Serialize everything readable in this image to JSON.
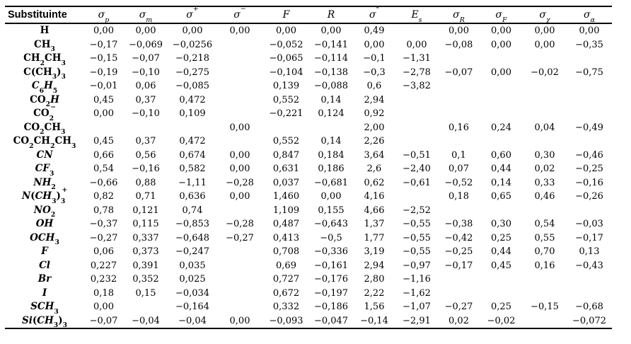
{
  "accent_colors": {
    "text": "#000000",
    "background": "#ffffff",
    "rule": "#000000"
  },
  "table": {
    "columns": [
      {
        "name": "col-substituinte",
        "html": "Substituinte"
      },
      {
        "name": "col-sigma-p",
        "html": "σ<sub>p</sub>"
      },
      {
        "name": "col-sigma-m",
        "html": "σ<sub>m</sub>"
      },
      {
        "name": "col-sigma-plus",
        "html": "σ<sup>+</sup>"
      },
      {
        "name": "col-sigma-minus",
        "html": "σ<sup>−</sup>"
      },
      {
        "name": "col-F",
        "html": "F"
      },
      {
        "name": "col-R",
        "html": "R"
      },
      {
        "name": "col-sigma-star",
        "html": "σ<sup>*</sup>"
      },
      {
        "name": "col-Es",
        "html": "E<sub>s</sub>"
      },
      {
        "name": "col-sigma-R",
        "html": "σ<sub>R</sub>"
      },
      {
        "name": "col-sigma-F",
        "html": "σ<sub>F</sub>"
      },
      {
        "name": "col-sigma-chi",
        "html": "σ<sub>χ</sub>"
      },
      {
        "name": "col-sigma-alpha",
        "html": "σ<sub>α</sub>"
      }
    ],
    "rows": [
      {
        "label_html": "H",
        "values": [
          "0,00",
          "0,00",
          "0,00",
          "0,00",
          "0,00",
          "0,00",
          "0,49",
          "",
          "0,00",
          "0,00",
          "0,00",
          "0,00"
        ]
      },
      {
        "label_html": "CH<sub>3</sub>",
        "values": [
          "−0,17",
          "−0,069",
          "−0,0256",
          "",
          "−0,052",
          "−0,141",
          "0,00",
          "0,00",
          "−0,08",
          "0,00",
          "0,00",
          "−0,35"
        ]
      },
      {
        "label_html": "CH<sub>2</sub>CH<sub>3</sub>",
        "values": [
          "−0,15",
          "−0,07",
          "−0,218",
          "",
          "−0,065",
          "−0,114",
          "−0,1",
          "−1,31",
          "",
          "",
          "",
          ""
        ]
      },
      {
        "label_html": "C(CH<sub>3</sub>)<sub>3</sub>",
        "values": [
          "−0,19",
          "−0,10",
          "−0,275",
          "",
          "−0,104",
          "−0,138",
          "−0,3",
          "−2,78",
          "−0,07",
          "0,00",
          "−0,02",
          "−0,75"
        ]
      },
      {
        "label_html": "<i>C</i><sub>6</sub><i>H</i><sub>5</sub>",
        "values": [
          "−0,01",
          "0,06",
          "−0,085",
          "",
          "0,139",
          "−0,088",
          "0,6",
          "−3,82",
          "",
          "",
          "",
          ""
        ]
      },
      {
        "label_html": "CO<sub>2</sub><i>H</i>",
        "values": [
          "0,45",
          "0,37",
          "0,472",
          "",
          "0,552",
          "0,14",
          "2,94",
          "",
          "",
          "",
          "",
          ""
        ]
      },
      {
        "label_html": "CO<sub>2</sub><sup class=\"ss\">−</sup>",
        "values": [
          "0,00",
          "−0,10",
          "0,109",
          "",
          "−0,221",
          "0,124",
          "0,92",
          "",
          "",
          "",
          "",
          ""
        ]
      },
      {
        "label_html": "CO<sub>2</sub>CH<sub>3</sub>",
        "values": [
          "",
          "",
          "",
          "0,00",
          "",
          "",
          "2,00",
          "",
          "0,16",
          "0,24",
          "0,04",
          "−0,49"
        ]
      },
      {
        "label_html": "CO<sub>2</sub>CH<sub>2</sub>CH<sub>3</sub>",
        "values": [
          "0,45",
          "0,37",
          "0,472",
          "",
          "0,552",
          "0,14",
          "2,26",
          "",
          "",
          "",
          "",
          ""
        ]
      },
      {
        "label_html": "<i>CN</i>",
        "values": [
          "0,66",
          "0,56",
          "0,674",
          "0,00",
          "0,847",
          "0,184",
          "3,64",
          "−0,51",
          "0,1",
          "0,60",
          "0,30",
          "−0,46"
        ]
      },
      {
        "label_html": "<i>CF</i><sub>3</sub>",
        "values": [
          "0,54",
          "−0,16",
          "0,582",
          "0,00",
          "0,631",
          "0,186",
          "2,6",
          "−2,40",
          "0,07",
          "0,44",
          "0,02",
          "−0,25"
        ]
      },
      {
        "label_html": "<i>NH</i><sub>2</sub>",
        "values": [
          "−0,66",
          "0,88",
          "−1,11",
          "−0,28",
          "0,037",
          "−0,681",
          "0,62",
          "−0,61",
          "−0,52",
          "0,14",
          "0,33",
          "−0,16"
        ]
      },
      {
        "label_html": "<i>N</i>(<i>CH</i><sub>3</sub>)<sub>3</sub><sup class=\"ss\">+</sup>",
        "values": [
          "0,82",
          "0,71",
          "0,636",
          "0,00",
          "1,460",
          "0,00",
          "4,16",
          "",
          "0,18",
          "0,65",
          "0,46",
          "−0,26"
        ]
      },
      {
        "label_html": "<i>NO</i><sub>2</sub>",
        "values": [
          "0,78",
          "0,121",
          "0,74",
          "",
          "1,109",
          "0,155",
          "4,66",
          "−2,52",
          "",
          "",
          "",
          ""
        ]
      },
      {
        "label_html": "<i>OH</i>",
        "values": [
          "−0,37",
          "0,115",
          "−0,853",
          "−0,28",
          "0,487",
          "−0,643",
          "1,37",
          "−0,55",
          "−0,38",
          "0,30",
          "0,54",
          "−0,03"
        ]
      },
      {
        "label_html": "<i>OCH</i><sub>3</sub>",
        "values": [
          "−0,27",
          "0,337",
          "−0,648",
          "−0,27",
          "0,413",
          "−0,5",
          "1,77",
          "−0,55",
          "−0,42",
          "0,25",
          "0,55",
          "−0,17"
        ]
      },
      {
        "label_html": "<i>F</i>",
        "values": [
          "0,06",
          "0,373",
          "−0,247",
          "",
          "0,708",
          "−0,336",
          "3,19",
          "−0,55",
          "−0,25",
          "0,44",
          "0,70",
          "0,13"
        ]
      },
      {
        "label_html": "<i>Cl</i>",
        "values": [
          "0,227",
          "0,391",
          "0,035",
          "",
          "0,69",
          "−0,161",
          "2,94",
          "−0,97",
          "−0,17",
          "0,45",
          "0,16",
          "−0,43"
        ]
      },
      {
        "label_html": "<i>Br</i>",
        "values": [
          "0,232",
          "0,352",
          "0,025",
          "",
          "0,727",
          "−0,176",
          "2,80",
          "−1,16",
          "",
          "",
          "",
          ""
        ]
      },
      {
        "label_html": "<i>I</i>",
        "values": [
          "0,18",
          "0,15",
          "−0,034",
          "",
          "0,672",
          "−0,197",
          "2,22",
          "−1,62",
          "",
          "",
          "",
          ""
        ]
      },
      {
        "label_html": "<i>SCH</i><sub>3</sub>",
        "values": [
          "0,00",
          "",
          "−0,164",
          "",
          "0,332",
          "−0,186",
          "1,56",
          "−1,07",
          "−0,27",
          "0,25",
          "−0,15",
          "−0,68"
        ]
      },
      {
        "label_html": "<i>Si</i>(<i>CH</i><sub>3</sub>)<sub>3</sub>",
        "values": [
          "−0,07",
          "−0,04",
          "−0,04",
          "0,00",
          "−0,093",
          "−0,047",
          "−0,14",
          "−2,91",
          "0,02",
          "−0,02",
          "",
          "−0,072"
        ]
      }
    ]
  }
}
